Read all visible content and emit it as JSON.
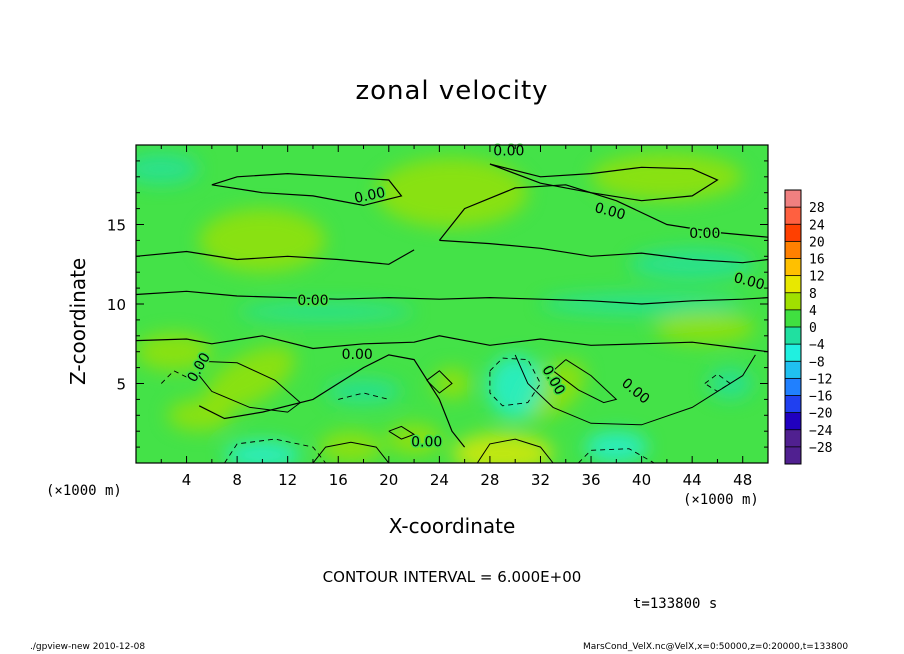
{
  "title": "zonal velocity",
  "chart_data": {
    "type": "heatmap",
    "title": "zonal velocity",
    "xlabel": "X-coordinate",
    "ylabel": "Z-coordinate",
    "x_unit": "(×1000 m)",
    "y_unit": "(×1000 m)",
    "xlim": [
      0,
      50
    ],
    "ylim": [
      0,
      20
    ],
    "x_ticks": [
      4,
      8,
      12,
      16,
      20,
      24,
      28,
      32,
      36,
      40,
      44,
      48
    ],
    "y_ticks": [
      5,
      10,
      15
    ],
    "contour_interval": "CONTOUR INTERVAL = 6.000E+00",
    "contour_labels": [
      "0.00",
      "0.00",
      "0.00",
      "0.00",
      "0.00",
      "0.00",
      "0.00",
      "0.00",
      "0.00",
      "0.00",
      "0.00"
    ],
    "colorbar": {
      "levels": [
        28,
        24,
        20,
        16,
        12,
        8,
        4,
        0,
        -4,
        -8,
        -12,
        -16,
        -20,
        -24,
        -28
      ],
      "labels": [
        "28",
        "24",
        "20",
        "16",
        "12",
        "8",
        "4",
        "0",
        "−4",
        "−8",
        "−12",
        "−16",
        "−20",
        "−24",
        "−28"
      ],
      "colors": [
        "#f08080",
        "#ff6040",
        "#ff4000",
        "#ff8000",
        "#ffc000",
        "#e8e800",
        "#a0e000",
        "#40e040",
        "#20e0a0",
        "#20f0e0",
        "#20c0f0",
        "#2080ff",
        "#2040f0",
        "#2000c0",
        "#502090"
      ]
    },
    "time": "t=133800 s"
  },
  "footer": {
    "left": "./gpview-new   2010-12-08",
    "right": "MarsCond_VelX.nc@VelX,x=0:50000,z=0:20000,t=133800"
  }
}
